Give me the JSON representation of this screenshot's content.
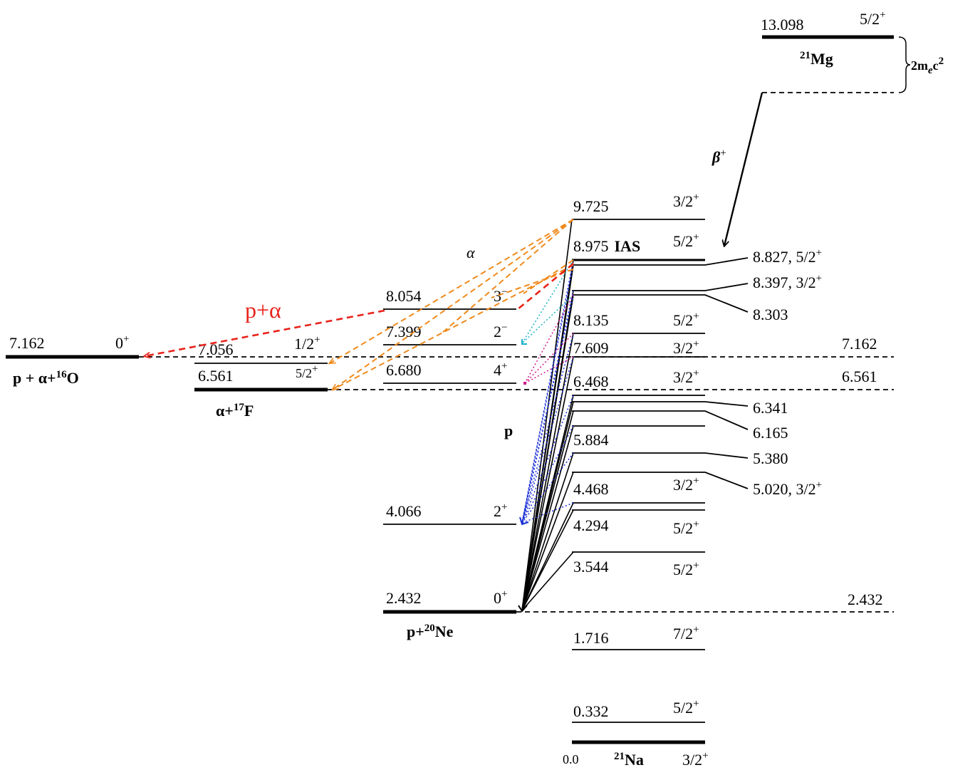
{
  "mg": {
    "energy": "13.098",
    "spin": "5/2",
    "spin_parity": "+",
    "label_mass": "21",
    "label_element": "Mg",
    "mass_gap": "2m",
    "mass_gap_sub": "e",
    "mass_gap_tail": "c",
    "mass_gap_pow": "2",
    "beta_label": "β",
    "beta_sign": "+"
  },
  "na21": {
    "label_mass": "21",
    "label_element": "Na",
    "ground_energy": "0.0",
    "ground_spin": "3/2",
    "ground_parity": "+",
    "levels": [
      {
        "energy": "9.725",
        "spin": "3/2",
        "parity": "+"
      },
      {
        "energy": "8.975",
        "tag": "IAS",
        "spin": "5/2",
        "parity": "+"
      },
      {
        "energy": "8.135",
        "spin": "5/2",
        "parity": "+"
      },
      {
        "energy": "7.609",
        "spin": "3/2",
        "parity": "+"
      },
      {
        "energy": "6.468",
        "spin": "3/2",
        "parity": "+"
      },
      {
        "energy": "5.884"
      },
      {
        "energy": "4.468",
        "spin": "3/2",
        "parity": "+"
      },
      {
        "energy": "4.294",
        "spin": "5/2",
        "parity": "+"
      },
      {
        "energy": "3.544",
        "spin": "5/2",
        "parity": "+"
      },
      {
        "energy": "1.716",
        "spin": "7/2",
        "parity": "+"
      },
      {
        "energy": "0.332",
        "spin": "5/2",
        "parity": "+"
      }
    ],
    "side_labels": [
      {
        "energy": "8.827",
        "spin": "5/2",
        "parity": "+"
      },
      {
        "energy": "8.397",
        "spin": "3/2",
        "parity": "+"
      },
      {
        "energy": "8.303"
      },
      {
        "energy": "6.341"
      },
      {
        "energy": "6.165"
      },
      {
        "energy": "5.380"
      },
      {
        "energy": "5.020",
        "spin": "3/2",
        "parity": "+"
      }
    ],
    "thresholds": [
      "7.162",
      "6.561",
      "2.432"
    ]
  },
  "ne20": {
    "label_prefix": "p+",
    "label_mass": "20",
    "label_element": "Ne",
    "levels": [
      {
        "energy": "8.054",
        "spin": "3",
        "parity": "−"
      },
      {
        "energy": "7.399",
        "spin": "2",
        "parity": "−"
      },
      {
        "energy": "6.680",
        "spin": "4",
        "parity": "+"
      },
      {
        "energy": "4.066",
        "spin": "2",
        "parity": "+"
      },
      {
        "energy": "2.432",
        "spin": "0",
        "parity": "+"
      }
    ]
  },
  "f17": {
    "label_prefix": "α+",
    "label_mass": "17",
    "label_element": "F",
    "levels": [
      {
        "energy": "7.056",
        "spin": "1/2",
        "parity": "+"
      },
      {
        "energy": "6.561",
        "spin": "5/2",
        "parity": "+"
      }
    ]
  },
  "o16": {
    "label_prefix": "p + α+",
    "label_mass": "16",
    "label_element": "O",
    "energy": "7.162",
    "spin": "0",
    "parity": "+"
  },
  "decay_labels": {
    "alpha": "α",
    "p_alpha": "p+α",
    "proton": "p"
  },
  "colors": {
    "alpha": "#f08a1c",
    "p_alpha": "#e8231a",
    "proton_blue": "#1a2fd6",
    "cyan": "#18b0c8",
    "magenta": "#d01a8a",
    "line": "#000000"
  }
}
